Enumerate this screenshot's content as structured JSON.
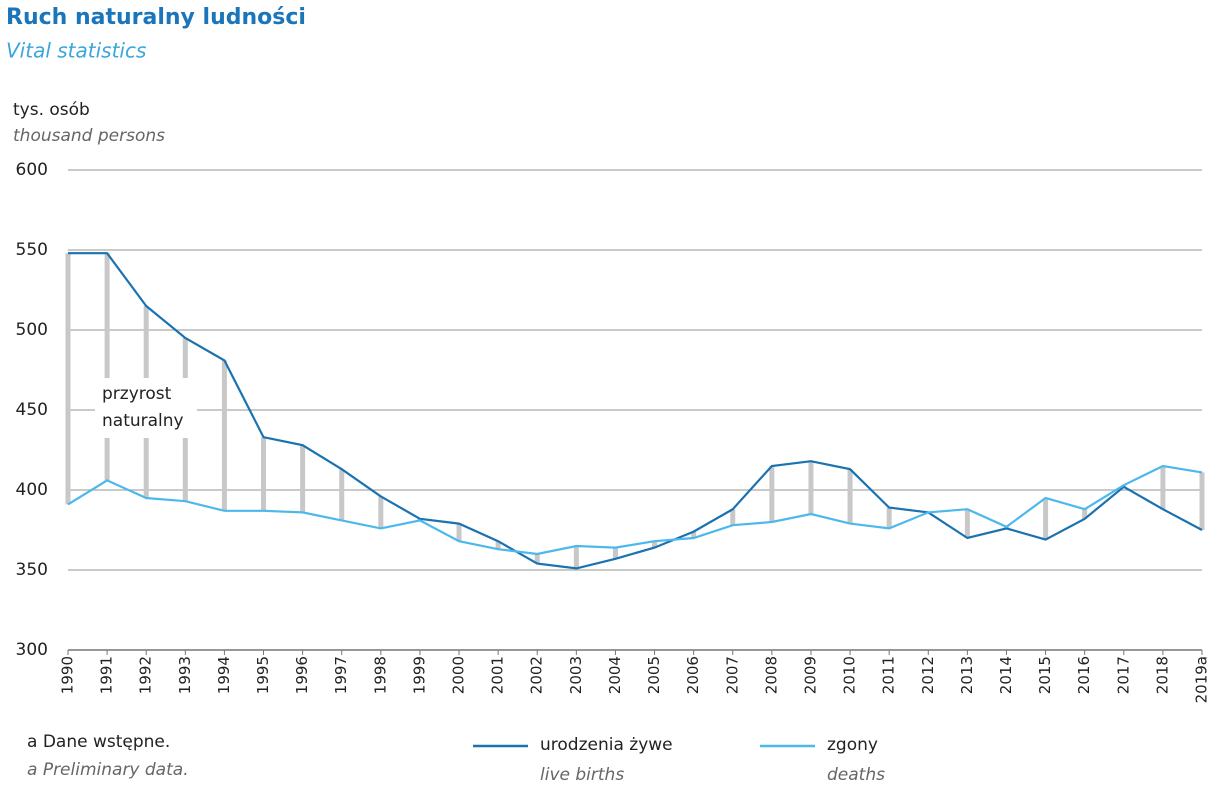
{
  "chart_data": {
    "type": "line",
    "title": "Ruch naturalny ludności",
    "subtitle": "Vital statistics",
    "y_label": "tys. osób",
    "y_label_en": "thousand persons",
    "annotation": [
      "przyrost",
      "naturalny"
    ],
    "footnote": "a Dane wstępne.",
    "footnote_en": "a Preliminary data.",
    "categories": [
      "1990",
      "1991",
      "1992",
      "1993",
      "1994",
      "1995",
      "1996",
      "1997",
      "1998",
      "1999",
      "2000",
      "2001",
      "2002",
      "2003",
      "2004",
      "2005",
      "2006",
      "2007",
      "2008",
      "2009",
      "2010",
      "2011",
      "2012",
      "2013",
      "2014",
      "2015",
      "2016",
      "2017",
      "2018",
      "2019a"
    ],
    "series": [
      {
        "name": "urodzenia żywe",
        "name_en": "live births",
        "color": "#1a72b0",
        "values": [
          548,
          548,
          515,
          495,
          481,
          433,
          428,
          413,
          396,
          382,
          379,
          368,
          354,
          351,
          357,
          364,
          374,
          388,
          415,
          418,
          413,
          389,
          386,
          370,
          376,
          369,
          382,
          402,
          388,
          375
        ]
      },
      {
        "name": "zgony",
        "name_en": "deaths",
        "color": "#4db8ec",
        "values": [
          391,
          406,
          395,
          393,
          387,
          387,
          386,
          381,
          376,
          381,
          368,
          363,
          360,
          365,
          364,
          368,
          370,
          378,
          380,
          385,
          379,
          376,
          386,
          388,
          377,
          395,
          388,
          403,
          415,
          411
        ]
      }
    ],
    "difference_color": "#c8c8c8",
    "ylim": [
      300,
      600
    ],
    "yticks": [
      300,
      350,
      400,
      450,
      500,
      550,
      600
    ],
    "grid": true
  }
}
